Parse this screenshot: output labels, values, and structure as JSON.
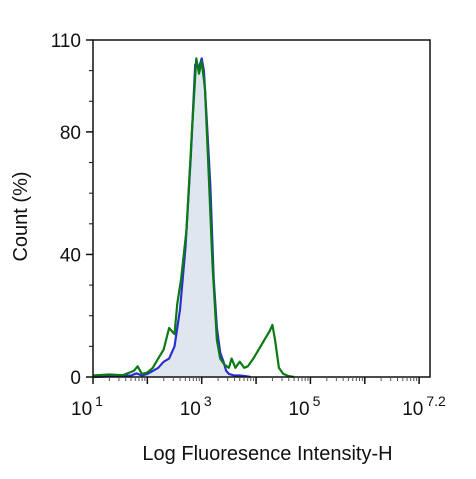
{
  "chart_data": {
    "type": "area",
    "xlabel": "Log Fluoresence Intensity-H",
    "ylabel": "Count  (%)",
    "x_scale": "log10",
    "xlim": [
      1,
      7.2
    ],
    "ylim": [
      0,
      110
    ],
    "x_ticks": [
      {
        "base": "10",
        "exp": "1",
        "value": 1
      },
      {
        "base": "10",
        "exp": "3",
        "value": 3
      },
      {
        "base": "10",
        "exp": "5",
        "value": 5
      },
      {
        "base": "10",
        "exp": "7.2",
        "value": 7.2
      }
    ],
    "y_ticks": [
      {
        "label": "0",
        "value": 0
      },
      {
        "label": "40",
        "value": 40
      },
      {
        "label": "80",
        "value": 80
      },
      {
        "label": "110",
        "value": 110
      }
    ],
    "grid": false,
    "legend": "none",
    "series": [
      {
        "color": "#0b7a12",
        "style": "outline",
        "points": [
          [
            1.0,
            0.5
          ],
          [
            1.3,
            0.8
          ],
          [
            1.55,
            0.6
          ],
          [
            1.75,
            2
          ],
          [
            1.82,
            3.5
          ],
          [
            1.9,
            1
          ],
          [
            2.0,
            1.5
          ],
          [
            2.1,
            3
          ],
          [
            2.2,
            6
          ],
          [
            2.3,
            9
          ],
          [
            2.4,
            16
          ],
          [
            2.5,
            14
          ],
          [
            2.55,
            24
          ],
          [
            2.62,
            32
          ],
          [
            2.72,
            48
          ],
          [
            2.82,
            80
          ],
          [
            2.9,
            104
          ],
          [
            2.95,
            99
          ],
          [
            3.0,
            103
          ],
          [
            3.06,
            94
          ],
          [
            3.12,
            70
          ],
          [
            3.2,
            36
          ],
          [
            3.28,
            12
          ],
          [
            3.34,
            6
          ],
          [
            3.42,
            4
          ],
          [
            3.5,
            3
          ],
          [
            3.55,
            6
          ],
          [
            3.62,
            3
          ],
          [
            3.7,
            5
          ],
          [
            3.78,
            3
          ],
          [
            3.85,
            3.5
          ],
          [
            3.95,
            6
          ],
          [
            4.05,
            9
          ],
          [
            4.15,
            12
          ],
          [
            4.25,
            15
          ],
          [
            4.3,
            17
          ],
          [
            4.35,
            12
          ],
          [
            4.42,
            3
          ],
          [
            4.5,
            1
          ],
          [
            4.6,
            0.3
          ],
          [
            4.7,
            0
          ]
        ]
      },
      {
        "color": "#2a2fd0",
        "style": "filled",
        "fill": "#dfe6f0",
        "points": [
          [
            1.0,
            0
          ],
          [
            1.4,
            0.3
          ],
          [
            1.7,
            0.5
          ],
          [
            1.8,
            1.2
          ],
          [
            1.9,
            0.5
          ],
          [
            2.0,
            1
          ],
          [
            2.1,
            2
          ],
          [
            2.2,
            3
          ],
          [
            2.3,
            5
          ],
          [
            2.4,
            6
          ],
          [
            2.5,
            10
          ],
          [
            2.6,
            22
          ],
          [
            2.7,
            42
          ],
          [
            2.8,
            72
          ],
          [
            2.88,
            102
          ],
          [
            2.95,
            101
          ],
          [
            3.0,
            104
          ],
          [
            3.04,
            100
          ],
          [
            3.1,
            82
          ],
          [
            3.16,
            62
          ],
          [
            3.22,
            32
          ],
          [
            3.28,
            16
          ],
          [
            3.34,
            8
          ],
          [
            3.4,
            5
          ],
          [
            3.45,
            2
          ],
          [
            3.5,
            1
          ],
          [
            3.6,
            0.5
          ],
          [
            3.7,
            0.5
          ],
          [
            3.8,
            0.3
          ],
          [
            3.9,
            0
          ]
        ]
      }
    ]
  }
}
